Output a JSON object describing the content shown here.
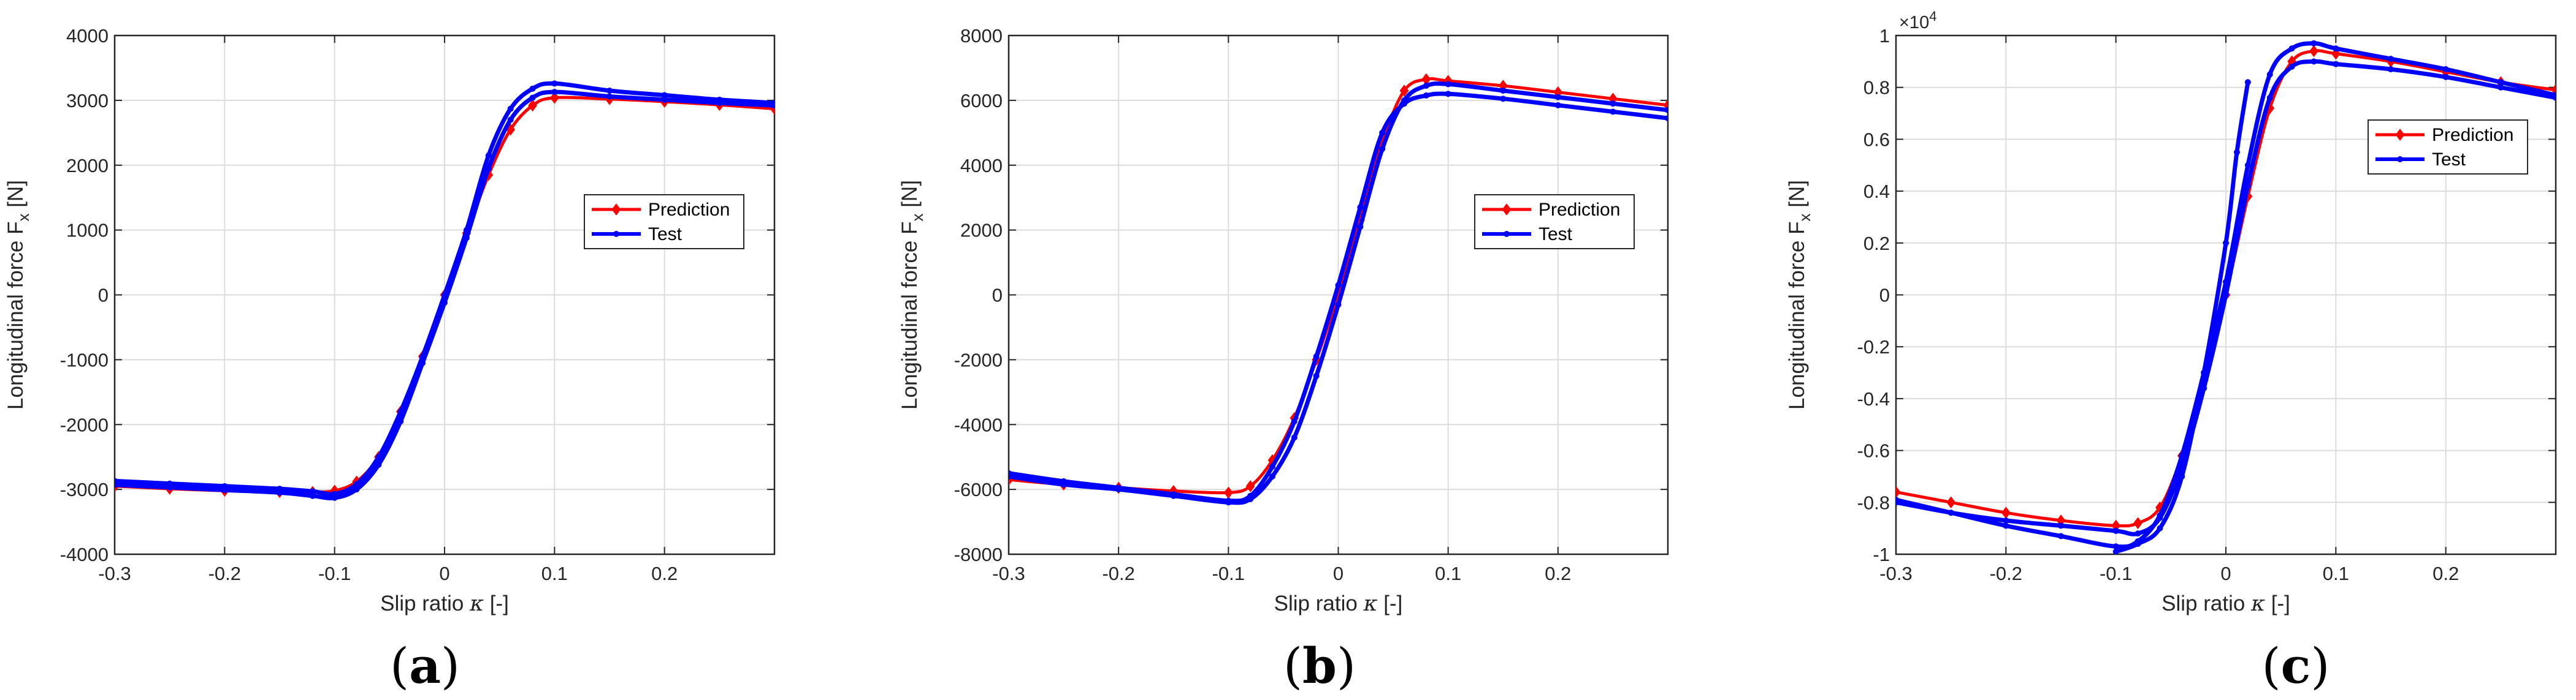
{
  "colors": {
    "prediction": "#ff0000",
    "test": "#0000ff",
    "grid": "#dcdcdc",
    "axis": "#262626"
  },
  "panels": [
    {
      "id": "a",
      "label_open": "(",
      "label_letter": "a",
      "label_close": ")",
      "chart_data": {
        "type": "line",
        "xlabel": "Slip ratio",
        "xlabel_symbol": "κ",
        "xlabel_unit": "[-]",
        "ylabel": "Longitudinal force",
        "ylabel_symbol": "F",
        "ylabel_sub": "x",
        "ylabel_unit": "[N]",
        "xlim": [
          -0.3,
          0.3
        ],
        "ylim": [
          -4000,
          4000
        ],
        "xticks": [
          -0.3,
          -0.2,
          -0.1,
          0,
          0.1,
          0.2
        ],
        "xtick_labels": [
          "-0.3",
          "-0.2",
          "-0.1",
          "0",
          "0.1",
          "0.2"
        ],
        "yticks": [
          -4000,
          -3000,
          -2000,
          -1000,
          0,
          1000,
          2000,
          3000,
          4000
        ],
        "ytick_labels": [
          "-4000",
          "-3000",
          "-2000",
          "-1000",
          "0",
          "1000",
          "2000",
          "3000",
          "4000"
        ],
        "exponent_label": "",
        "grid": true,
        "legend_position": "right-middle",
        "series": [
          {
            "name": "Prediction",
            "color": "#ff0000",
            "marker": "diamond",
            "x": [
              -0.3,
              -0.25,
              -0.2,
              -0.15,
              -0.12,
              -0.1,
              -0.08,
              -0.06,
              -0.04,
              -0.02,
              0,
              0.02,
              0.04,
              0.06,
              0.08,
              0.1,
              0.15,
              0.2,
              0.25,
              0.3
            ],
            "y": [
              -2950,
              -2990,
              -3020,
              -3040,
              -3040,
              -3020,
              -2880,
              -2500,
              -1800,
              -950,
              0,
              950,
              1850,
              2550,
              2920,
              3040,
              3020,
              2980,
              2930,
              2870
            ]
          },
          {
            "name": "Test",
            "color": "#0000ff",
            "marker": "dot",
            "x": [
              -0.3,
              -0.25,
              -0.2,
              -0.15,
              -0.12,
              -0.1,
              -0.08,
              -0.06,
              -0.04,
              -0.02,
              0,
              0.02,
              0.04,
              0.06,
              0.08,
              0.1,
              0.15,
              0.2,
              0.25,
              0.3
            ],
            "y": [
              -2870,
              -2910,
              -2950,
              -2990,
              -3030,
              -3070,
              -2920,
              -2500,
              -1800,
              -950,
              0,
              1000,
              2150,
              2870,
              3180,
              3260,
              3150,
              3080,
              3010,
              2960
            ]
          },
          {
            "name": "",
            "color": "#0000ff",
            "marker": "dot",
            "x": [
              -0.3,
              -0.25,
              -0.2,
              -0.15,
              -0.12,
              -0.1,
              -0.08,
              -0.06,
              -0.04,
              -0.02,
              0,
              0.02,
              0.04,
              0.06,
              0.08,
              0.1,
              0.15,
              0.2,
              0.25,
              0.3
            ],
            "y": [
              -2930,
              -2970,
              -3010,
              -3050,
              -3100,
              -3130,
              -3000,
              -2620,
              -1950,
              -1050,
              -120,
              880,
              1950,
              2700,
              3040,
              3130,
              3060,
              3010,
              2960,
              2920
            ]
          }
        ]
      }
    },
    {
      "id": "b",
      "label_open": "(",
      "label_letter": "b",
      "label_close": ")",
      "chart_data": {
        "type": "line",
        "xlabel": "Slip ratio",
        "xlabel_symbol": "κ",
        "xlabel_unit": "[-]",
        "ylabel": "Longitudinal force",
        "ylabel_symbol": "F",
        "ylabel_sub": "x",
        "ylabel_unit": "[N]",
        "xlim": [
          -0.3,
          0.3
        ],
        "ylim": [
          -8000,
          8000
        ],
        "xticks": [
          -0.3,
          -0.2,
          -0.1,
          0,
          0.1,
          0.2
        ],
        "xtick_labels": [
          "-0.3",
          "-0.2",
          "-0.1",
          "0",
          "0.1",
          "0.2"
        ],
        "yticks": [
          -8000,
          -6000,
          -4000,
          -2000,
          0,
          2000,
          4000,
          6000,
          8000
        ],
        "ytick_labels": [
          "-8000",
          "-6000",
          "-4000",
          "-2000",
          "0",
          "2000",
          "4000",
          "6000",
          "8000"
        ],
        "exponent_label": "",
        "grid": true,
        "legend_position": "right-middle",
        "series": [
          {
            "name": "Prediction",
            "color": "#ff0000",
            "marker": "diamond",
            "x": [
              -0.3,
              -0.25,
              -0.2,
              -0.15,
              -0.1,
              -0.08,
              -0.06,
              -0.04,
              -0.02,
              0,
              0.02,
              0.04,
              0.06,
              0.08,
              0.1,
              0.15,
              0.2,
              0.25,
              0.3
            ],
            "y": [
              -5700,
              -5850,
              -5950,
              -6050,
              -6100,
              -5900,
              -5100,
              -3800,
              -2000,
              0,
              2300,
              4700,
              6300,
              6650,
              6600,
              6450,
              6250,
              6050,
              5850
            ]
          },
          {
            "name": "Test",
            "color": "#0000ff",
            "marker": "dot",
            "x": [
              -0.3,
              -0.25,
              -0.2,
              -0.15,
              -0.1,
              -0.08,
              -0.06,
              -0.04,
              -0.02,
              0,
              0.02,
              0.04,
              0.06,
              0.08,
              0.1,
              0.15,
              0.2,
              0.25,
              0.3
            ],
            "y": [
              -5500,
              -5750,
              -5950,
              -6150,
              -6350,
              -6200,
              -5300,
              -3900,
              -1900,
              300,
              2700,
              5000,
              5900,
              6150,
              6200,
              6050,
              5850,
              5650,
              5450
            ]
          },
          {
            "name": "",
            "color": "#0000ff",
            "marker": "dot",
            "x": [
              -0.3,
              -0.25,
              -0.2,
              -0.15,
              -0.1,
              -0.08,
              -0.06,
              -0.04,
              -0.02,
              0,
              0.02,
              0.04,
              0.06,
              0.08,
              0.1,
              0.15,
              0.2,
              0.25,
              0.3
            ],
            "y": [
              -5600,
              -5850,
              -6000,
              -6200,
              -6400,
              -6300,
              -5600,
              -4400,
              -2500,
              -300,
              2100,
              4500,
              6000,
              6450,
              6500,
              6300,
              6100,
              5900,
              5700
            ]
          }
        ]
      }
    },
    {
      "id": "c",
      "label_open": "(",
      "label_letter": "c",
      "label_close": ")",
      "chart_data": {
        "type": "line",
        "xlabel": "Slip ratio",
        "xlabel_symbol": "κ",
        "xlabel_unit": "[-]",
        "ylabel": "Longitudinal force",
        "ylabel_symbol": "F",
        "ylabel_sub": "x",
        "ylabel_unit": "[N]",
        "xlim": [
          -0.3,
          0.3
        ],
        "ylim": [
          -1,
          1
        ],
        "xticks": [
          -0.3,
          -0.2,
          -0.1,
          0,
          0.1,
          0.2
        ],
        "xtick_labels": [
          "-0.3",
          "-0.2",
          "-0.1",
          "0",
          "0.1",
          "0.2"
        ],
        "yticks": [
          -1,
          -0.8,
          -0.6,
          -0.4,
          -0.2,
          0,
          0.2,
          0.4,
          0.6,
          0.8,
          1
        ],
        "ytick_labels": [
          "-1",
          "-0.8",
          "-0.6",
          "-0.4",
          "-0.2",
          "0",
          "0.2",
          "0.4",
          "0.6",
          "0.8",
          "1"
        ],
        "exponent_label": "×10",
        "exponent_power": "4",
        "grid": true,
        "legend_position": "upper-right",
        "series": [
          {
            "name": "Prediction",
            "color": "#ff0000",
            "marker": "diamond",
            "x": [
              -0.3,
              -0.25,
              -0.2,
              -0.15,
              -0.1,
              -0.08,
              -0.06,
              -0.04,
              -0.02,
              0,
              0.02,
              0.04,
              0.06,
              0.08,
              0.1,
              0.15,
              0.2,
              0.25,
              0.3
            ],
            "y": [
              -0.76,
              -0.8,
              -0.84,
              -0.87,
              -0.89,
              -0.88,
              -0.82,
              -0.62,
              -0.33,
              0,
              0.38,
              0.72,
              0.9,
              0.94,
              0.93,
              0.9,
              0.86,
              0.82,
              0.79
            ]
          },
          {
            "name": "Test",
            "color": "#0000ff",
            "marker": "dot",
            "x": [
              -0.3,
              -0.25,
              -0.2,
              -0.15,
              -0.1,
              -0.08,
              -0.06,
              -0.04,
              -0.02,
              0,
              0.02,
              0.04,
              0.06,
              0.08,
              0.1,
              0.15,
              0.2,
              0.25,
              0.3
            ],
            "y": [
              -0.79,
              -0.84,
              -0.89,
              -0.93,
              -0.97,
              -0.95,
              -0.85,
              -0.62,
              -0.3,
              0.05,
              0.5,
              0.85,
              0.95,
              0.97,
              0.95,
              0.91,
              0.87,
              0.82,
              0.77
            ]
          },
          {
            "name": "",
            "color": "#0000ff",
            "marker": "dot",
            "x": [
              -0.3,
              -0.25,
              -0.2,
              -0.15,
              -0.1,
              -0.08,
              -0.06,
              -0.04,
              -0.02,
              0,
              0.02,
              0.04,
              0.06,
              0.08,
              0.1,
              0.15,
              0.2,
              0.25,
              0.3
            ],
            "y": [
              -0.8,
              -0.84,
              -0.87,
              -0.89,
              -0.91,
              -0.92,
              -0.86,
              -0.66,
              -0.36,
              0,
              0.42,
              0.76,
              0.88,
              0.9,
              0.89,
              0.87,
              0.84,
              0.8,
              0.76
            ]
          },
          {
            "name": "",
            "color": "#0000ff",
            "marker": "dot",
            "x": [
              -0.1,
              -0.08,
              -0.06,
              -0.04,
              -0.02,
              0,
              0.01,
              0.02
            ],
            "y": [
              -0.99,
              -0.96,
              -0.9,
              -0.7,
              -0.3,
              0.2,
              0.55,
              0.82
            ]
          }
        ]
      }
    }
  ]
}
